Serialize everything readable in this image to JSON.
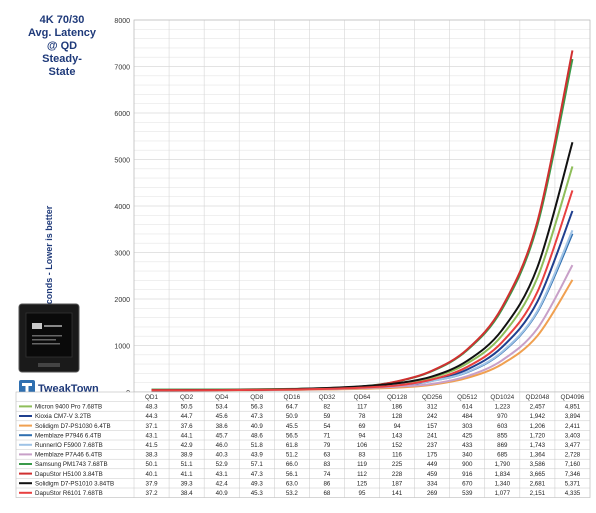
{
  "title_lines": [
    "4K 70/30",
    "Avg. Latency",
    "@ QD",
    "Steady-",
    "State"
  ],
  "logo_text": "TweakTown",
  "chart_data": {
    "type": "line",
    "title": "4K 70/30 Avg. Latency @ QD Steady-State",
    "ylabel": "Microseconds - Lower is better",
    "xlabel": "",
    "ylim": [
      0,
      8000
    ],
    "yticks": [
      0,
      1000,
      2000,
      3000,
      4000,
      5000,
      6000,
      7000,
      8000
    ],
    "grid": true,
    "legend": "table-below",
    "categories": [
      "QD1",
      "QD2",
      "QD4",
      "QD8",
      "QD16",
      "QD32",
      "QD64",
      "QD128",
      "QD256",
      "QD512",
      "QD1024",
      "QD2048",
      "QD4096"
    ],
    "series": [
      {
        "name": "Micron 9400 Pro 7.68TB",
        "color": "#8fbe5a",
        "values": [
          48.3,
          50.5,
          53.4,
          56.3,
          64.7,
          82,
          117,
          186,
          312,
          614,
          1223,
          2457,
          4851
        ],
        "labels": [
          "48.3",
          "50.5",
          "53.4",
          "56.3",
          "64.7",
          "82",
          "117",
          "186",
          "312",
          "614",
          "1,223",
          "2,457",
          "4,851"
        ]
      },
      {
        "name": "Kioxia CM7-V 3.2TB",
        "color": "#1f3f8f",
        "values": [
          44.3,
          44.7,
          45.6,
          47.3,
          50.9,
          59,
          78,
          128,
          242,
          484,
          970,
          1942,
          3894
        ],
        "labels": [
          "44.3",
          "44.7",
          "45.6",
          "47.3",
          "50.9",
          "59",
          "78",
          "128",
          "242",
          "484",
          "970",
          "1,942",
          "3,894"
        ]
      },
      {
        "name": "Solidigm D7-PS1030 6.4TB",
        "color": "#f0a050",
        "values": [
          37.1,
          37.6,
          38.6,
          40.9,
          45.5,
          54,
          69,
          94,
          157,
          303,
          603,
          1206,
          2411
        ],
        "labels": [
          "37.1",
          "37.6",
          "38.6",
          "40.9",
          "45.5",
          "54",
          "69",
          "94",
          "157",
          "303",
          "603",
          "1,206",
          "2,411"
        ]
      },
      {
        "name": "Memblaze P7946 6.4TB",
        "color": "#2f6fb0",
        "values": [
          43.1,
          44.1,
          45.7,
          48.6,
          56.5,
          71,
          94,
          143,
          241,
          425,
          855,
          1720,
          3403
        ],
        "labels": [
          "43.1",
          "44.1",
          "45.7",
          "48.6",
          "56.5",
          "71",
          "94",
          "143",
          "241",
          "425",
          "855",
          "1,720",
          "3,403"
        ]
      },
      {
        "name": "RunnerIO F5900 7.68TB",
        "color": "#9fc3e6",
        "values": [
          41.5,
          42.9,
          46.0,
          51.8,
          61.8,
          79,
          106,
          152,
          237,
          433,
          869,
          1743,
          3477
        ],
        "labels": [
          "41.5",
          "42.9",
          "46.0",
          "51.8",
          "61.8",
          "79",
          "106",
          "152",
          "237",
          "433",
          "869",
          "1,743",
          "3,477"
        ]
      },
      {
        "name": "Memblaze P7A46 6.4TB",
        "color": "#c8a0c8",
        "values": [
          38.3,
          38.9,
          40.3,
          43.9,
          51.2,
          63,
          83,
          116,
          175,
          340,
          685,
          1364,
          2728
        ],
        "labels": [
          "38.3",
          "38.9",
          "40.3",
          "43.9",
          "51.2",
          "63",
          "83",
          "116",
          "175",
          "340",
          "685",
          "1,364",
          "2,728"
        ]
      },
      {
        "name": "Samsung PM1743 7.68TB",
        "color": "#3a9a4a",
        "values": [
          50.1,
          51.1,
          52.9,
          57.1,
          66.0,
          83,
          119,
          225,
          449,
          900,
          1790,
          3586,
          7160
        ],
        "labels": [
          "50.1",
          "51.1",
          "52.9",
          "57.1",
          "66.0",
          "83",
          "119",
          "225",
          "449",
          "900",
          "1,790",
          "3,586",
          "7,160"
        ]
      },
      {
        "name": "DapuStor H5100 3.84TB",
        "color": "#d03030",
        "values": [
          40.1,
          41.1,
          43.1,
          47.3,
          56.1,
          74,
          112,
          228,
          459,
          916,
          1834,
          3665,
          7346
        ],
        "labels": [
          "40.1",
          "41.1",
          "43.1",
          "47.3",
          "56.1",
          "74",
          "112",
          "228",
          "459",
          "916",
          "1,834",
          "3,665",
          "7,346"
        ]
      },
      {
        "name": "Solidigm D7-PS1010 3.84TB",
        "color": "#111111",
        "values": [
          37.9,
          39.3,
          42.4,
          49.3,
          63.0,
          86,
          125,
          187,
          334,
          670,
          1340,
          2681,
          5371
        ],
        "labels": [
          "37.9",
          "39.3",
          "42.4",
          "49.3",
          "63.0",
          "86",
          "125",
          "187",
          "334",
          "670",
          "1,340",
          "2,681",
          "5,371"
        ]
      },
      {
        "name": "DapuStor R6101 7.68TB",
        "color": "#e84040",
        "values": [
          37.2,
          38.4,
          40.9,
          45.3,
          53.2,
          68,
          95,
          141,
          269,
          539,
          1077,
          2151,
          4335
        ],
        "labels": [
          "37.2",
          "38.4",
          "40.9",
          "45.3",
          "53.2",
          "68",
          "95",
          "141",
          "269",
          "539",
          "1,077",
          "2,151",
          "4,335"
        ]
      }
    ]
  }
}
